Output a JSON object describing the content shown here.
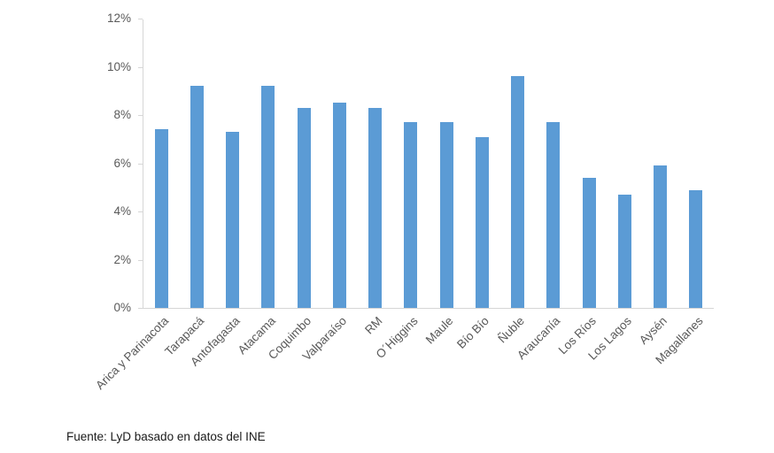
{
  "chart_data": {
    "type": "bar",
    "title": "",
    "xlabel": "",
    "ylabel": "",
    "categories": [
      "Arica y Parinacota",
      "Tarapacá",
      "Antofagasta",
      "Atacama",
      "Coquimbo",
      "Valparaíso",
      "RM",
      "O´Higgins",
      "Maule",
      "Bío Bío",
      "Ñuble",
      "Araucanía",
      "Los Ríos",
      "Los Lagos",
      "Aysén",
      "Magallanes"
    ],
    "values": [
      7.4,
      9.2,
      7.3,
      9.2,
      8.3,
      8.5,
      8.3,
      7.7,
      7.7,
      7.1,
      9.6,
      7.7,
      5.4,
      4.7,
      5.9,
      4.9
    ],
    "unit": "%",
    "ylim": [
      0,
      12
    ],
    "ytick_labels": [
      "0%",
      "2%",
      "4%",
      "6%",
      "8%",
      "10%",
      "12%"
    ],
    "grid": false,
    "legend_position": "none",
    "bar_color": "#5b9bd5",
    "axis_color": "#d6d6d6",
    "tick_label_color": "#595959"
  },
  "source_note": "Fuente: LyD basado en datos del INE"
}
